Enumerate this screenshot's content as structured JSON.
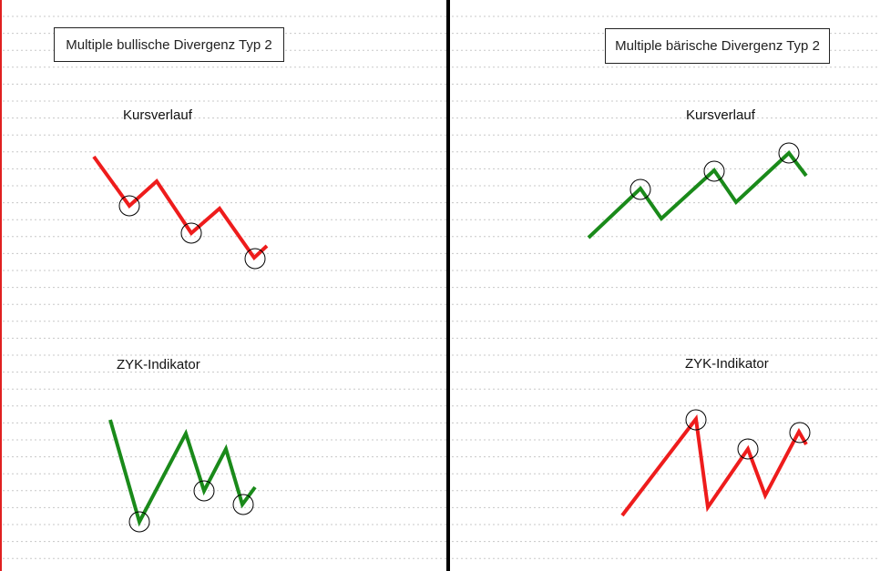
{
  "colors": {
    "bearish_red": "#ee1c1c",
    "bullish_green": "#1a8a1a",
    "divider": "#000000",
    "left_edge": "#e02020",
    "grid_dots": "#c8c8c8"
  },
  "left_panel": {
    "title": "Multiple bullische Divergenz Typ 2",
    "price_label": "Kursverlauf",
    "indicator_label": "ZYK-Indikator"
  },
  "right_panel": {
    "title": "Multiple bärische Divergenz Typ 2",
    "price_label": "Kursverlauf",
    "indicator_label": "ZYK-Indikator"
  }
}
